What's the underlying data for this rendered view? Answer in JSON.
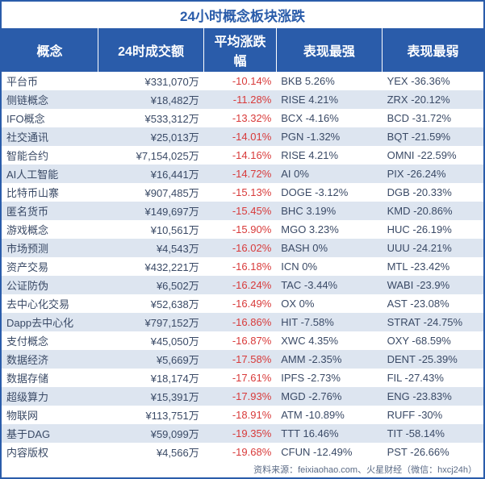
{
  "title": "24小时概念板块涨跌",
  "title_color": "#2a5caa",
  "title_fontsize": 17,
  "header_bg": "#2a5caa",
  "header_fg": "#ffffff",
  "row_even_bg": "#ffffff",
  "row_odd_bg": "#dde5f0",
  "change_color": "#d83a3a",
  "text_color": "#3a4a66",
  "border_color": "#2a5caa",
  "columns": [
    {
      "key": "concept",
      "label": "概念",
      "width": "20%",
      "align": "left"
    },
    {
      "key": "volume",
      "label": "24时成交额",
      "width": "22%",
      "align": "right"
    },
    {
      "key": "change",
      "label": "平均涨跌幅",
      "width": "15%",
      "align": "right"
    },
    {
      "key": "best",
      "label": "表现最强",
      "width": "22%",
      "align": "left"
    },
    {
      "key": "worst",
      "label": "表现最弱",
      "width": "21%",
      "align": "left"
    }
  ],
  "rows": [
    {
      "concept": "平台币",
      "volume": "¥331,070万",
      "change": "-10.14%",
      "best": "BKB 5.26%",
      "worst": "YEX -36.36%"
    },
    {
      "concept": "侧链概念",
      "volume": "¥18,482万",
      "change": "-11.28%",
      "best": "RISE 4.21%",
      "worst": "ZRX -20.12%"
    },
    {
      "concept": "IFO概念",
      "volume": "¥533,312万",
      "change": "-13.32%",
      "best": "BCX -4.16%",
      "worst": "BCD -31.72%"
    },
    {
      "concept": "社交通讯",
      "volume": "¥25,013万",
      "change": "-14.01%",
      "best": "PGN -1.32%",
      "worst": "BQT -21.59%"
    },
    {
      "concept": "智能合约",
      "volume": "¥7,154,025万",
      "change": "-14.16%",
      "best": "RISE 4.21%",
      "worst": "OMNI -22.59%"
    },
    {
      "concept": "AI人工智能",
      "volume": "¥16,441万",
      "change": "-14.72%",
      "best": "AI 0%",
      "worst": "PIX -26.24%"
    },
    {
      "concept": "比特币山寨",
      "volume": "¥907,485万",
      "change": "-15.13%",
      "best": "DOGE -3.12%",
      "worst": "DGB -20.33%"
    },
    {
      "concept": "匿名货币",
      "volume": "¥149,697万",
      "change": "-15.45%",
      "best": "BHC 3.19%",
      "worst": "KMD -20.86%"
    },
    {
      "concept": "游戏概念",
      "volume": "¥10,561万",
      "change": "-15.90%",
      "best": "MGO 3.23%",
      "worst": "HUC -26.19%"
    },
    {
      "concept": "市场预测",
      "volume": "¥4,543万",
      "change": "-16.02%",
      "best": "BASH 0%",
      "worst": "UUU -24.21%"
    },
    {
      "concept": "资产交易",
      "volume": "¥432,221万",
      "change": "-16.18%",
      "best": "ICN 0%",
      "worst": "MTL -23.42%"
    },
    {
      "concept": "公证防伪",
      "volume": "¥6,502万",
      "change": "-16.24%",
      "best": "TAC -3.44%",
      "worst": "WABI -23.9%"
    },
    {
      "concept": "去中心化交易",
      "volume": "¥52,638万",
      "change": "-16.49%",
      "best": "OX 0%",
      "worst": "AST -23.08%"
    },
    {
      "concept": "Dapp去中心化",
      "volume": "¥797,152万",
      "change": "-16.86%",
      "best": "HIT -7.58%",
      "worst": "STRAT -24.75%"
    },
    {
      "concept": "支付概念",
      "volume": "¥45,050万",
      "change": "-16.87%",
      "best": "XWC 4.35%",
      "worst": "OXY -68.59%"
    },
    {
      "concept": "数据经济",
      "volume": "¥5,669万",
      "change": "-17.58%",
      "best": "AMM -2.35%",
      "worst": "DENT -25.39%"
    },
    {
      "concept": "数据存储",
      "volume": "¥18,174万",
      "change": "-17.61%",
      "best": "IPFS -2.73%",
      "worst": "FIL -27.43%"
    },
    {
      "concept": "超级算力",
      "volume": "¥15,391万",
      "change": "-17.93%",
      "best": "MGD -2.76%",
      "worst": "ENG -23.83%"
    },
    {
      "concept": "物联网",
      "volume": "¥113,751万",
      "change": "-18.91%",
      "best": "ATM -10.89%",
      "worst": "RUFF -30%"
    },
    {
      "concept": "基于DAG",
      "volume": "¥59,099万",
      "change": "-19.35%",
      "best": "TTT 16.46%",
      "worst": "TIT -58.14%"
    },
    {
      "concept": "内容版权",
      "volume": "¥4,566万",
      "change": "-19.68%",
      "best": "CFUN -12.49%",
      "worst": "PST -26.66%"
    }
  ],
  "footer": "资料来源：feixiaohao.com、火星财经（微信：hxcj24h）"
}
